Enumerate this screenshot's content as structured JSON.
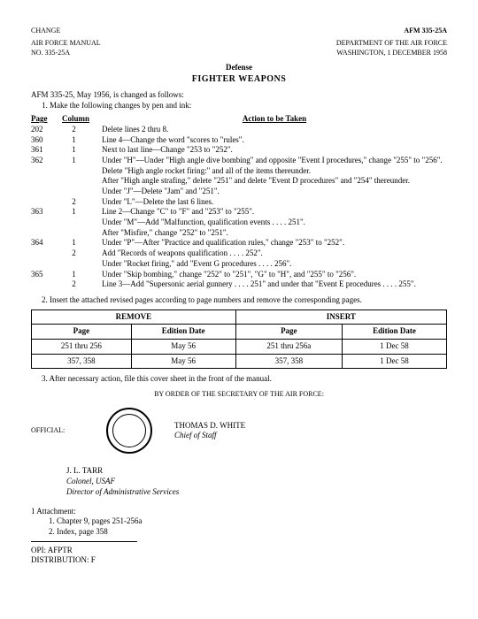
{
  "top": {
    "change": "CHANGE",
    "afm": "AFM 335-25A"
  },
  "hdr": {
    "left1": "AIR FORCE MANUAL",
    "left2": "NO. 335-25A",
    "right1": "DEPARTMENT OF THE AIR FORCE",
    "right2": "WASHINGTON, 1 DECEMBER 1958"
  },
  "titles": {
    "t1": "Defense",
    "t2": "FIGHTER WEAPONS"
  },
  "intro": "AFM 335-25, May 1956, is changed as follows:",
  "step1": "1. Make the following changes by pen and ink:",
  "cols": {
    "page": "Page",
    "column": "Column",
    "action": "Action to be Taken"
  },
  "rows": [
    {
      "p": "202",
      "c": "2",
      "a": "Delete lines 2 thru 8."
    },
    {
      "p": "360",
      "c": "1",
      "a": "Line 4—Change the word \"scores to \"rules\"."
    },
    {
      "p": "361",
      "c": "1",
      "a": "Next to last line—Change \"253 to \"252\"."
    },
    {
      "p": "362",
      "c": "1",
      "a": "Under \"H\"—Under \"High angle dive bombing\" and opposite \"Event I procedures,\" change \"255\" to \"256\"."
    },
    {
      "p": "",
      "c": "",
      "a": "Delete \"High angle rocket firing:\" and all of the items thereunder."
    },
    {
      "p": "",
      "c": "",
      "a": "After \"High angle strafing,\" delete \"251\" and delete \"Event D procedures\" and \"254\" thereunder."
    },
    {
      "p": "",
      "c": "",
      "a": "Under \"J\"—Delete \"Jam\" and \"251\"."
    },
    {
      "p": "",
      "c": "2",
      "a": "Under \"L\"—Delete the last 6 lines."
    },
    {
      "p": "363",
      "c": "1",
      "a": "Line 2—Change \"C\" to \"F\" and \"253\" to \"255\"."
    },
    {
      "p": "",
      "c": "",
      "a": "Under \"M\"—Add \"Malfunction, qualification events . . . . 251\"."
    },
    {
      "p": "",
      "c": "",
      "a": "After \"Misfire,\" change \"252\" to \"251\"."
    },
    {
      "p": "364",
      "c": "1",
      "a": "Under \"P\"—After \"Practice and qualification rules,\" change \"253\" to \"252\"."
    },
    {
      "p": "",
      "c": "2",
      "a": "Add \"Records of weapons qualification . . . . 252\"."
    },
    {
      "p": "",
      "c": "",
      "a": "Under \"Rocket firing,\" add \"Event G procedures . . . . 256\"."
    },
    {
      "p": "365",
      "c": "1",
      "a": "Under \"Skip bombing,\" change \"252\" to \"251\", \"G\" to \"H\", and \"255\" to \"256\"."
    },
    {
      "p": "",
      "c": "2",
      "a": "Line 3—Add \"Supersonic aerial gunnery . . . . 251\" and under that \"Event E procedures . . . . 255\"."
    }
  ],
  "step2": "2. Insert the attached revised pages according to page numbers and remove the corresponding pages.",
  "table": {
    "remove": "REMOVE",
    "insert": "INSERT",
    "page": "Page",
    "edition": "Edition Date",
    "r": [
      {
        "rp": "251 thru 256",
        "re": "May 56",
        "ip": "251 thru 256a",
        "ie": "1 Dec 58"
      },
      {
        "rp": "357, 358",
        "re": "May 56",
        "ip": "357, 358",
        "ie": "1 Dec 58"
      }
    ]
  },
  "step3": "3. After necessary action, file this cover sheet in the front of the manual.",
  "order": "BY ORDER OF THE SECRETARY OF THE AIR FORCE:",
  "official": "OFFICIAL:",
  "sig": {
    "name": "THOMAS D. WHITE",
    "title": "Chief of Staff"
  },
  "sig2": {
    "name": "J. L. TARR",
    "rank": "Colonel, USAF",
    "title": "Director of Administrative Services"
  },
  "attach": {
    "h": "1 Attachment:",
    "i1": "1. Chapter 9, pages 251-256a",
    "i2": "2. Index, page 358"
  },
  "foot": {
    "opi": "OPI: AFPTR",
    "dist": "DISTRIBUTION: F"
  }
}
